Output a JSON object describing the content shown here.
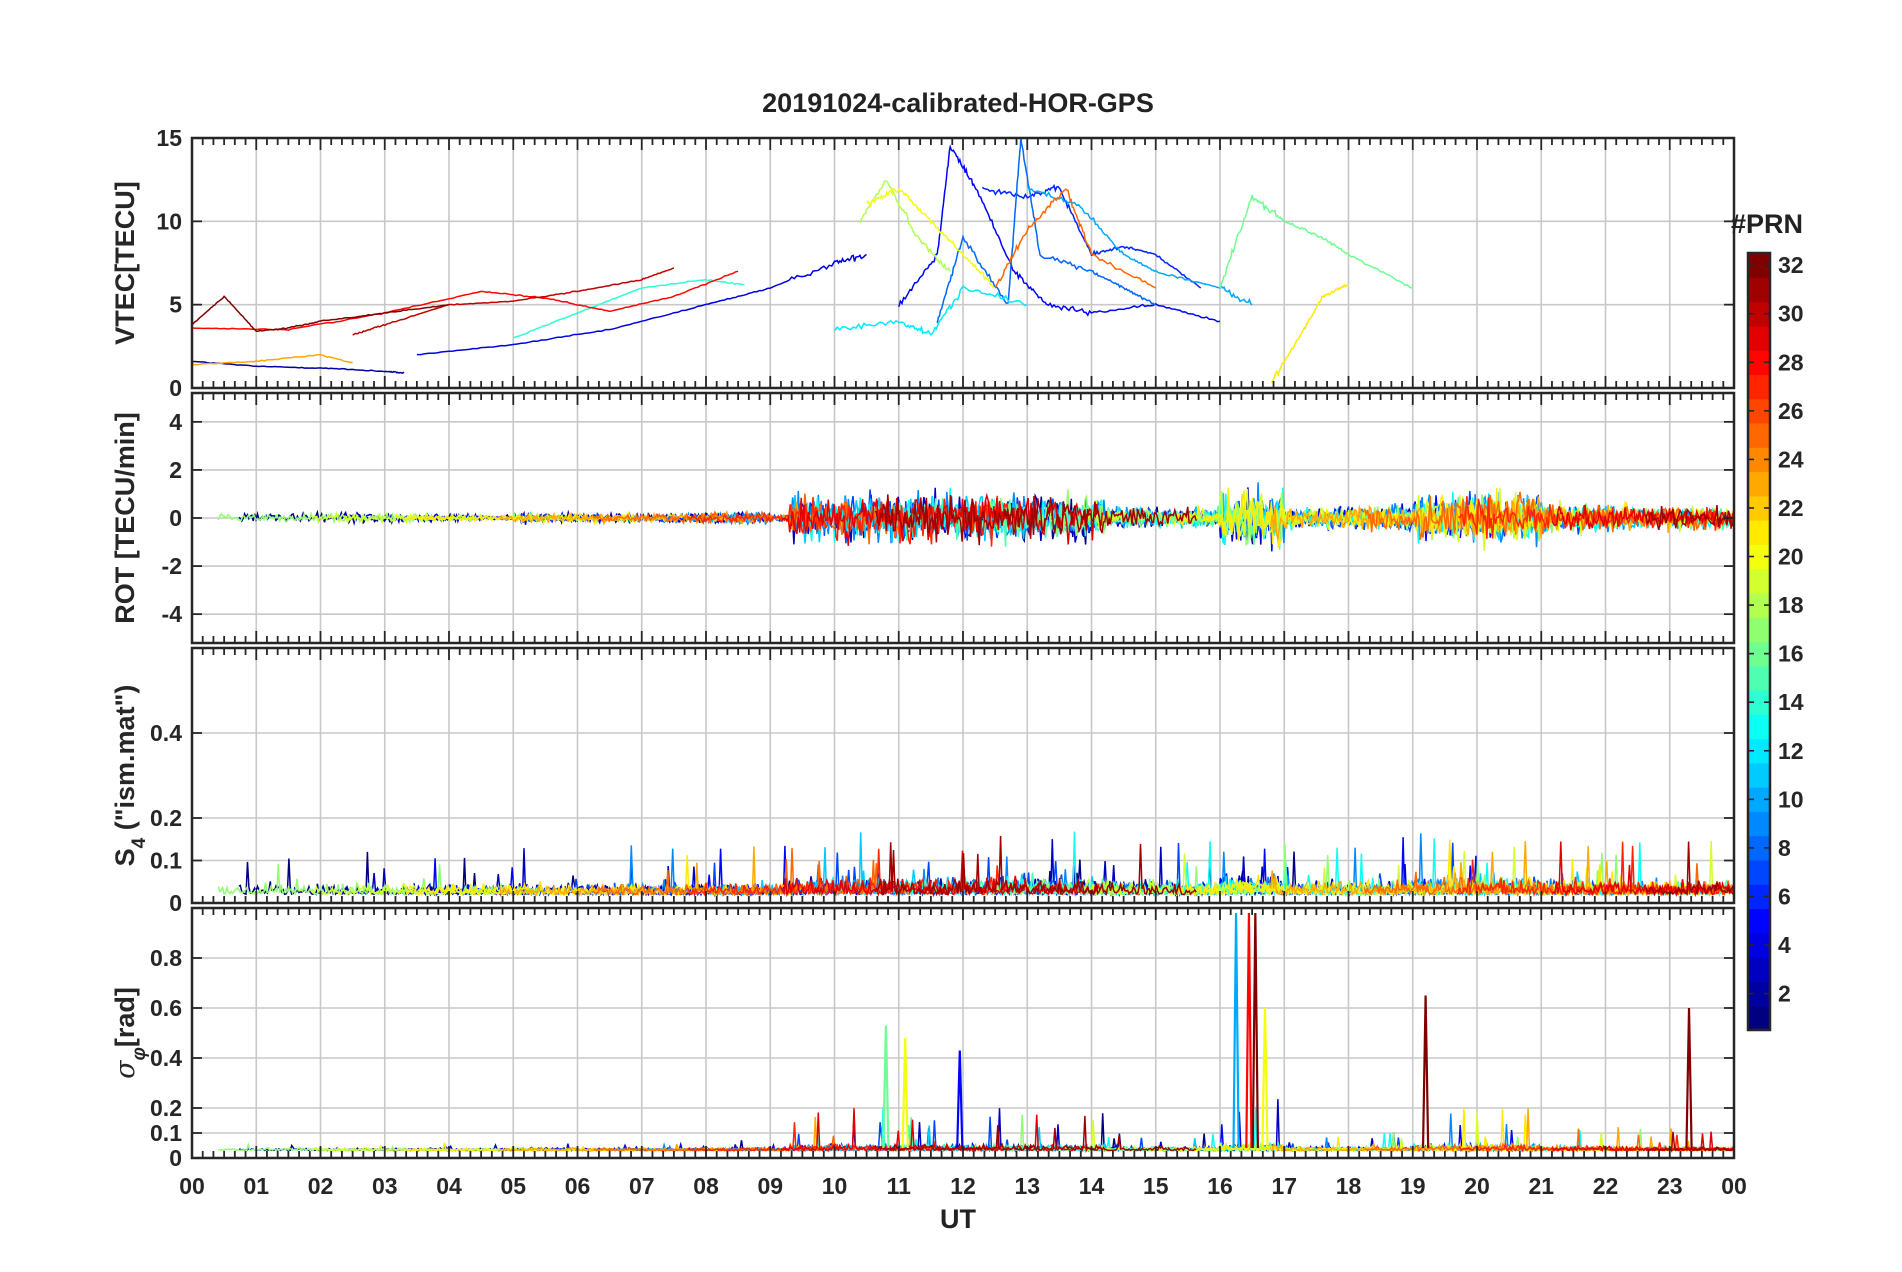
{
  "chart_data": {
    "type": "line",
    "title": "20191024-calibrated-HOR-GPS",
    "xlabel": "UT",
    "x_tick_labels": [
      "00",
      "01",
      "02",
      "03",
      "04",
      "05",
      "06",
      "07",
      "08",
      "09",
      "10",
      "11",
      "12",
      "13",
      "14",
      "15",
      "16",
      "17",
      "18",
      "19",
      "20",
      "21",
      "22",
      "23",
      "00"
    ],
    "xlim": [
      0,
      24
    ],
    "grid": true,
    "panels": [
      {
        "id": "vtec",
        "ylabel": "VTEC[TECU]",
        "ylim": [
          0,
          15
        ],
        "yticks": [
          0,
          5,
          10,
          15
        ],
        "ytick_labels": [
          "0",
          "5",
          "10",
          "15"
        ]
      },
      {
        "id": "rot",
        "ylabel": "ROT [TECU/min]",
        "ylim": [
          -5.2,
          5.2
        ],
        "yticks": [
          -4,
          -2,
          0,
          2,
          4
        ],
        "ytick_labels": [
          "-4",
          "-2",
          "0",
          "2",
          "4"
        ]
      },
      {
        "id": "s4",
        "ylabel_main": "S",
        "ylabel_sub": "4",
        "ylabel_rest": " (\"ism.mat\")",
        "ylim": [
          0,
          0.6
        ],
        "yticks": [
          0,
          0.1,
          0.2,
          0.4
        ],
        "ytick_labels": [
          "0",
          "0.1",
          "0.2",
          "0.4"
        ]
      },
      {
        "id": "sigma",
        "ylabel_main": "σ",
        "ylabel_sub": "φ",
        "ylabel_rest": "[rad]",
        "ylim": [
          0,
          1
        ],
        "yticks": [
          0,
          0.1,
          0.2,
          0.4,
          0.6,
          0.8
        ],
        "ytick_labels": [
          "0",
          "0.1",
          "0.2",
          "0.4",
          "0.6",
          "0.8"
        ]
      }
    ],
    "colorbar": {
      "title": "#PRN",
      "range": [
        1,
        32
      ],
      "tick_values": [
        2,
        4,
        6,
        8,
        10,
        12,
        14,
        16,
        18,
        20,
        22,
        24,
        26,
        28,
        30,
        32
      ],
      "tick_labels": [
        "2",
        "4",
        "6",
        "8",
        "10",
        "12",
        "14",
        "16",
        "18",
        "20",
        "22",
        "24",
        "26",
        "28",
        "30",
        "32"
      ],
      "colormap": "jet"
    },
    "series_note": "one trace per GPS PRN 1-32 coloured by PRN",
    "vtec_tracks": [
      {
        "prn": 2,
        "x": [
          0,
          1,
          2,
          3,
          3.3
        ],
        "y": [
          1.6,
          1.3,
          1.2,
          1.0,
          0.9
        ]
      },
      {
        "prn": 4,
        "x": [
          3.5,
          5,
          6.5,
          8,
          9,
          10,
          10.5
        ],
        "y": [
          2.0,
          2.6,
          3.5,
          5.0,
          6.0,
          7.5,
          8.0
        ]
      },
      {
        "prn": 5,
        "x": [
          11,
          11.6,
          11.8,
          12.2,
          12.8,
          13.3,
          14,
          15,
          16
        ],
        "y": [
          5,
          8,
          14.5,
          12,
          7,
          5,
          4.5,
          5,
          4
        ]
      },
      {
        "prn": 6,
        "x": [
          12.3,
          13,
          13.5,
          14,
          14.5,
          15,
          15.7
        ],
        "y": [
          12,
          11.5,
          12,
          8,
          8.5,
          8,
          6
        ]
      },
      {
        "prn": 8,
        "x": [
          11.6,
          12,
          12.7,
          12.9,
          13.2,
          14,
          14.5,
          15
        ],
        "y": [
          4,
          9,
          5,
          15,
          8,
          7,
          6,
          5
        ]
      },
      {
        "prn": 10,
        "x": [
          13,
          13.8,
          14.5,
          15,
          16,
          16.5
        ],
        "y": [
          12,
          11,
          8,
          7,
          6,
          5
        ]
      },
      {
        "prn": 12,
        "x": [
          10,
          11,
          11.5,
          12,
          13
        ],
        "y": [
          3.5,
          4,
          3.2,
          6,
          5
        ]
      },
      {
        "prn": 14,
        "x": [
          5,
          6,
          7,
          8,
          8.6
        ],
        "y": [
          3,
          4.5,
          6,
          6.5,
          6.2
        ]
      },
      {
        "prn": 16,
        "x": [
          16,
          16.5,
          17,
          17.6,
          18,
          19
        ],
        "y": [
          6,
          11.5,
          10,
          9,
          8,
          6
        ]
      },
      {
        "prn": 18,
        "x": [
          10.4,
          10.8,
          11.3,
          11.8
        ],
        "y": [
          10,
          12.5,
          9,
          7
        ]
      },
      {
        "prn": 20,
        "x": [
          10.5,
          11,
          11.5,
          12,
          12.5
        ],
        "y": [
          11,
          12,
          10,
          8,
          6
        ]
      },
      {
        "prn": 21,
        "x": [
          16.8,
          17.3,
          17.6,
          18
        ],
        "y": [
          0.3,
          3.5,
          5.5,
          6.2
        ]
      },
      {
        "prn": 23,
        "x": [
          0,
          1,
          2,
          2.5
        ],
        "y": [
          1.4,
          1.6,
          2.0,
          1.5
        ]
      },
      {
        "prn": 25,
        "x": [
          12.5,
          13,
          13.6,
          14,
          15
        ],
        "y": [
          6,
          9.5,
          12,
          8,
          6
        ]
      },
      {
        "prn": 28,
        "x": [
          0,
          1.5,
          3,
          4.5,
          5.5,
          6.5,
          7.5,
          8.5
        ],
        "y": [
          3.6,
          3.5,
          4.5,
          5.8,
          5.4,
          4.6,
          5.5,
          7.0
        ]
      },
      {
        "prn": 30,
        "x": [
          2.5,
          3,
          4,
          5,
          6,
          7,
          7.5
        ],
        "y": [
          3.2,
          3.8,
          5,
          5.2,
          5.8,
          6.5,
          7.2
        ]
      },
      {
        "prn": 32,
        "x": [
          0,
          0.5,
          1,
          1.5,
          2,
          3,
          4
        ],
        "y": [
          3.8,
          5.5,
          3.4,
          3.6,
          4,
          4.5,
          5
        ]
      }
    ],
    "scintillation_spikes": [
      {
        "prn": 10,
        "x": 16.25,
        "y": 0.98
      },
      {
        "prn": 28,
        "x": 16.45,
        "y": 0.98
      },
      {
        "prn": 32,
        "x": 16.55,
        "y": 0.98
      },
      {
        "prn": 20,
        "x": 16.7,
        "y": 0.6
      },
      {
        "prn": 32,
        "x": 19.2,
        "y": 0.65
      },
      {
        "prn": 32,
        "x": 23.3,
        "y": 0.6
      },
      {
        "prn": 16,
        "x": 10.8,
        "y": 0.53
      },
      {
        "prn": 20,
        "x": 11.1,
        "y": 0.48
      },
      {
        "prn": 5,
        "x": 11.95,
        "y": 0.43
      }
    ]
  }
}
